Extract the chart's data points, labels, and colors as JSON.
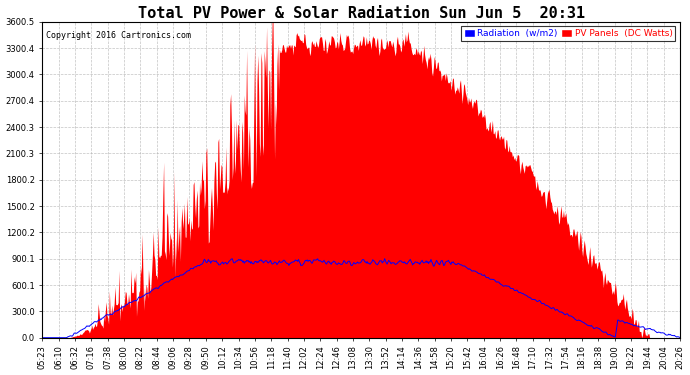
{
  "title": "Total PV Power & Solar Radiation Sun Jun 5  20:31",
  "copyright": "Copyright 2016 Cartronics.com",
  "legend_radiation": "Radiation  (w/m2)",
  "legend_pv": "PV Panels  (DC Watts)",
  "ylim": [
    0.0,
    3600.5
  ],
  "yticks": [
    0.0,
    300.0,
    600.1,
    900.1,
    1200.2,
    1500.2,
    1800.2,
    2100.3,
    2400.3,
    2700.4,
    3000.4,
    3300.4,
    3600.5
  ],
  "ytick_labels": [
    "0.0",
    "300.0",
    "600.1",
    "900.1",
    "1200.2",
    "1500.2",
    "1800.2",
    "2100.3",
    "2400.3",
    "2700.4",
    "3000.4",
    "3300.4",
    "3600.5"
  ],
  "xtick_labels": [
    "05:23",
    "06:10",
    "06:32",
    "07:16",
    "07:38",
    "08:00",
    "08:22",
    "08:44",
    "09:06",
    "09:28",
    "09:50",
    "10:12",
    "10:34",
    "10:56",
    "11:18",
    "11:40",
    "12:02",
    "12:24",
    "12:46",
    "13:08",
    "13:30",
    "13:52",
    "14:14",
    "14:36",
    "14:58",
    "15:20",
    "15:42",
    "16:04",
    "16:26",
    "16:48",
    "17:10",
    "17:32",
    "17:54",
    "18:16",
    "18:38",
    "19:00",
    "19:22",
    "19:44",
    "20:04",
    "20:26"
  ],
  "bg_color": "#ffffff",
  "plot_bg_color": "#ffffff",
  "grid_color": "#aaaaaa",
  "red_fill_color": "#ff0000",
  "blue_line_color": "#0000ff",
  "title_fontsize": 11,
  "copyright_fontsize": 6,
  "tick_fontsize": 6,
  "legend_fontsize": 6.5
}
